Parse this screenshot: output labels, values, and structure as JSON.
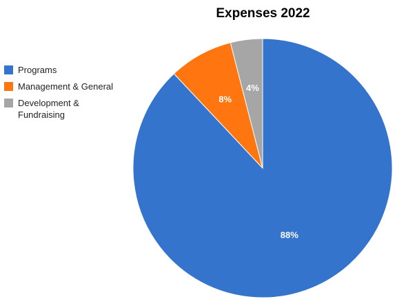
{
  "chart_data": {
    "type": "pie",
    "title": "Expenses 2022",
    "legend_position": "left",
    "categories": [
      "Programs",
      "Management & General",
      "Development & Fundraising"
    ],
    "values": [
      88,
      8,
      4
    ],
    "data_labels": [
      "88%",
      "8%",
      "4%"
    ],
    "colors": [
      "#3474cc",
      "#ff7510",
      "#a6a6a6"
    ]
  }
}
